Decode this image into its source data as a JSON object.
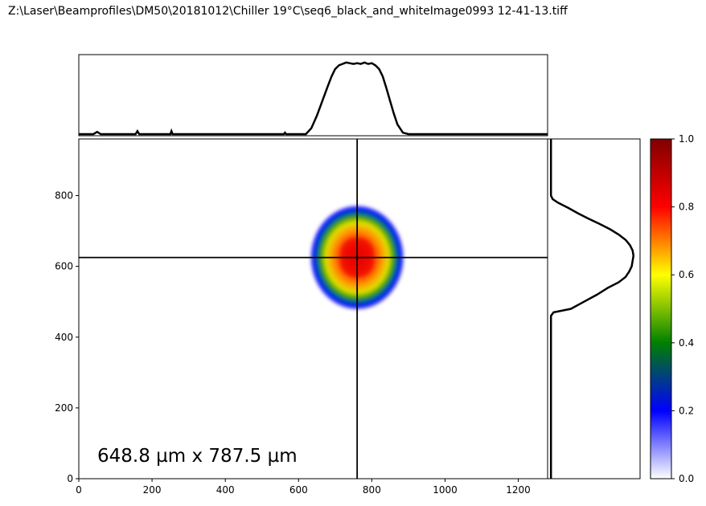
{
  "title": "Z:\\Laser\\Beamprofiles\\DM50\\20181012\\Chiller 19°C\\seq6_black_and_whiteImage0993 12-41-13.tiff",
  "annotation": "648.8 µm x 787.5 µm",
  "colors": {
    "profile_line": "#000000",
    "crosshair": "#000000",
    "colormap": [
      "#ffffff",
      "#0000ff",
      "#008000",
      "#ffff00",
      "#ff0000",
      "#800000"
    ]
  },
  "chart_data": {
    "type": "heatmap",
    "description_of_data": "beam intensity image with horizontal and vertical line profiles",
    "xlim": [
      0,
      1280
    ],
    "ylim": [
      0,
      960
    ],
    "x_ticks": [
      0,
      200,
      400,
      600,
      800,
      1000,
      1200
    ],
    "y_ticks": [
      0,
      200,
      400,
      600,
      800
    ],
    "crosshair": {
      "x": 760,
      "y": 625
    },
    "beam": {
      "center_x": 760,
      "center_y": 625,
      "width_um": 648.8,
      "height_um": 787.5
    },
    "colorbar": {
      "range": [
        0,
        1
      ],
      "ticks": [
        0.0,
        0.2,
        0.4,
        0.6,
        0.8,
        1.0
      ]
    },
    "horizontal_profile": {
      "x": [
        0,
        40,
        50,
        60,
        155,
        160,
        165,
        250,
        253,
        256,
        560,
        563,
        566,
        620,
        635,
        650,
        665,
        680,
        690,
        700,
        710,
        720,
        730,
        740,
        750,
        760,
        770,
        780,
        790,
        800,
        810,
        820,
        830,
        840,
        850,
        860,
        870,
        885,
        900,
        920,
        1000,
        1100,
        1280
      ],
      "values": [
        0.0,
        0.0,
        0.03,
        0.0,
        0.0,
        0.04,
        0.0,
        0.0,
        0.04,
        0.0,
        0.0,
        0.02,
        0.0,
        0.0,
        0.08,
        0.25,
        0.45,
        0.65,
        0.78,
        0.88,
        0.93,
        0.95,
        0.97,
        0.96,
        0.95,
        0.96,
        0.95,
        0.97,
        0.95,
        0.96,
        0.93,
        0.88,
        0.78,
        0.62,
        0.45,
        0.28,
        0.13,
        0.02,
        0.0,
        0.0,
        0.0,
        0.0,
        0.0
      ]
    },
    "vertical_profile": {
      "y": [
        0,
        100,
        200,
        300,
        400,
        460,
        470,
        480,
        500,
        520,
        540,
        555,
        570,
        585,
        600,
        615,
        630,
        645,
        660,
        675,
        690,
        705,
        720,
        735,
        750,
        765,
        780,
        790,
        800,
        900,
        960
      ],
      "values": [
        0.02,
        0.02,
        0.02,
        0.02,
        0.02,
        0.02,
        0.05,
        0.25,
        0.4,
        0.55,
        0.68,
        0.8,
        0.88,
        0.92,
        0.95,
        0.96,
        0.97,
        0.96,
        0.93,
        0.88,
        0.8,
        0.7,
        0.58,
        0.45,
        0.33,
        0.22,
        0.1,
        0.04,
        0.02,
        0.02,
        0.02
      ]
    }
  }
}
